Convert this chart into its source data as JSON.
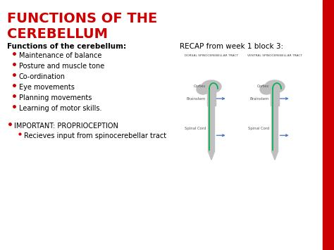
{
  "title_line1": "FUNCTIONS OF THE",
  "title_line2": "CEREBELLUM",
  "title_color": "#cc0000",
  "bg_color": "#ffffff",
  "subtitle": "Functions of the cerebellum:",
  "bullet_items": [
    "Maintenance of balance",
    "Posture and muscle tone",
    "Co-ordination",
    "Eye movements",
    "Planning movements",
    "Learning of motor skills."
  ],
  "important_text": "IMPORTANT: PROPRIOCEPTION",
  "sub_bullet": "Recieves input from spinocerebellar tract",
  "recap_title": "RECAP from week 1 block 3:",
  "dorsal_label": "DORSAL SPINOCEREBELLAR TRACT",
  "ventral_label": "VENTRAL SPINOCEREBELLAR TRACT",
  "cortex_label": "Cortex",
  "brainstem_label": "Brainstem",
  "spinal_cord_label": "Spinal Cord",
  "right_bar_color": "#cc0000",
  "body_text_color": "#000000",
  "bullet_color": "#cc0000",
  "important_color": "#000000",
  "diagram_gray": "#c0bfbf",
  "diagram_green": "#00b050",
  "diagram_blue": "#4472c4",
  "title_fontsize": 14,
  "subtitle_fontsize": 7.5,
  "bullet_fontsize": 7,
  "recap_fontsize": 7.5,
  "diagram_label_fontsize": 3.8,
  "tract_label_fontsize": 3.2
}
